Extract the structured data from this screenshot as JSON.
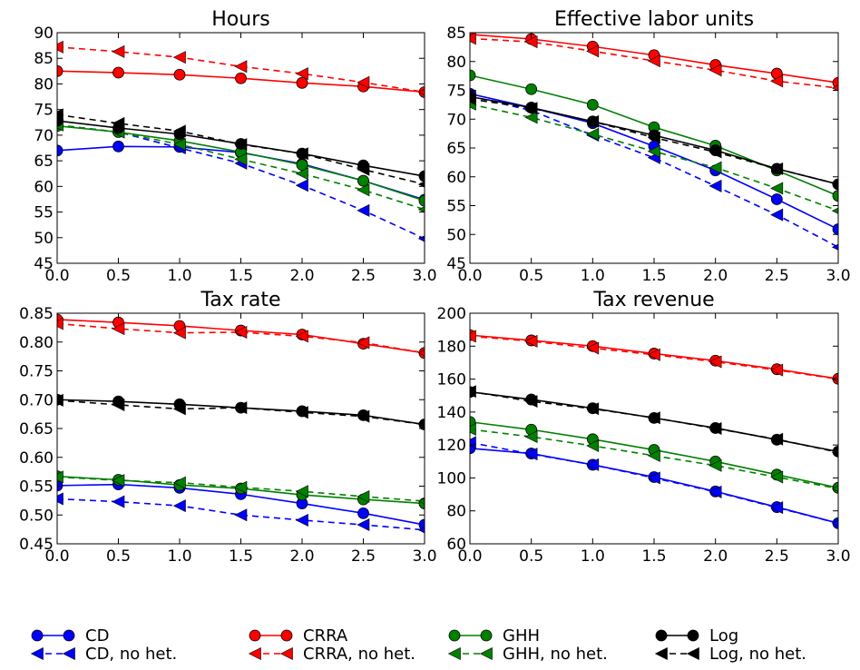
{
  "chart_data": [
    {
      "type": "line",
      "title": "Hours",
      "xlabel": "",
      "ylabel": "",
      "xlim": [
        0,
        3
      ],
      "ylim": [
        45,
        90
      ],
      "xticks": [
        "0.0",
        "0.5",
        "1.0",
        "1.5",
        "2.0",
        "2.5",
        "3.0"
      ],
      "yticks": [
        "45",
        "50",
        "55",
        "60",
        "65",
        "70",
        "75",
        "80",
        "85",
        "90"
      ],
      "grid": false,
      "x": [
        0,
        0.5,
        1,
        1.5,
        2,
        2.5,
        3
      ],
      "series": [
        {
          "name": "CD",
          "values": [
            67,
            67.8,
            67.7,
            66.6,
            64.4,
            61.1,
            57.4
          ]
        },
        {
          "name": "CD, no het.",
          "values": [
            72,
            70.6,
            67.5,
            64.5,
            60.2,
            55.3,
            49.8
          ]
        },
        {
          "name": "CRRA",
          "values": [
            82.5,
            82.2,
            81.8,
            81.1,
            80.2,
            79.5,
            78.4
          ]
        },
        {
          "name": "CRRA, no het.",
          "values": [
            87.2,
            86.3,
            85.2,
            83.4,
            82,
            80.3,
            78.4
          ]
        },
        {
          "name": "GHH",
          "values": [
            71.8,
            70.6,
            68.9,
            66.7,
            64.2,
            61.1,
            57.2
          ]
        },
        {
          "name": "GHH, no het.",
          "values": [
            72,
            70.6,
            68.2,
            65.3,
            62.5,
            59.3,
            55.5
          ]
        },
        {
          "name": "Log",
          "values": [
            72.8,
            71.4,
            70.2,
            68.3,
            66.4,
            64.1,
            62
          ]
        },
        {
          "name": "Log, no het.",
          "values": [
            74,
            72.3,
            70.8,
            68.2,
            66.4,
            63.3,
            60.4
          ]
        }
      ]
    },
    {
      "type": "line",
      "title": "Effective labor units",
      "xlabel": "",
      "ylabel": "",
      "xlim": [
        0,
        3
      ],
      "ylim": [
        45,
        85
      ],
      "xticks": [
        "0.0",
        "0.5",
        "1.0",
        "1.5",
        "2.0",
        "2.5",
        "3.0"
      ],
      "yticks": [
        "45",
        "50",
        "55",
        "60",
        "65",
        "70",
        "75",
        "80",
        "85"
      ],
      "grid": false,
      "x": [
        0,
        0.5,
        1,
        1.5,
        2,
        2.5,
        3
      ],
      "series": [
        {
          "name": "CD",
          "values": [
            74.4,
            72,
            69.3,
            65.3,
            61.1,
            56.1,
            50.9
          ]
        },
        {
          "name": "CD, no het.",
          "values": [
            74,
            71.5,
            67.2,
            63.3,
            58.4,
            53.4,
            47.8
          ]
        },
        {
          "name": "CRRA",
          "values": [
            84.7,
            83.9,
            82.6,
            81.1,
            79.4,
            77.9,
            76.3
          ]
        },
        {
          "name": "CRRA, no het.",
          "values": [
            84,
            83.4,
            81.8,
            80.1,
            78.5,
            76.6,
            75.4
          ]
        },
        {
          "name": "GHH",
          "values": [
            77.6,
            75.2,
            72.5,
            68.6,
            65.4,
            61.1,
            56.7
          ]
        },
        {
          "name": "GHH, no het.",
          "values": [
            72.6,
            70.3,
            67.4,
            64.4,
            61.6,
            58,
            54.1
          ]
        },
        {
          "name": "Log",
          "values": [
            73.9,
            72,
            69.6,
            67.2,
            64.6,
            61.4,
            58.7
          ]
        },
        {
          "name": "Log, no het.",
          "values": [
            73.5,
            71.9,
            69.6,
            66.8,
            64.3,
            61.4,
            58.7
          ]
        }
      ]
    },
    {
      "type": "line",
      "title": "Tax rate",
      "xlabel": "",
      "ylabel": "",
      "xlim": [
        0,
        3
      ],
      "ylim": [
        0.45,
        0.85
      ],
      "xticks": [
        "0.0",
        "0.5",
        "1.0",
        "1.5",
        "2.0",
        "2.5",
        "3.0"
      ],
      "yticks": [
        "0.45",
        "0.50",
        "0.55",
        "0.60",
        "0.65",
        "0.70",
        "0.75",
        "0.80",
        "0.85"
      ],
      "grid": false,
      "x": [
        0,
        0.5,
        1,
        1.5,
        2,
        2.5,
        3
      ],
      "series": [
        {
          "name": "CD",
          "values": [
            0.551,
            0.553,
            0.547,
            0.536,
            0.52,
            0.503,
            0.483
          ]
        },
        {
          "name": "CD, no het.",
          "values": [
            0.528,
            0.523,
            0.516,
            0.5,
            0.491,
            0.483,
            0.474
          ]
        },
        {
          "name": "CRRA",
          "values": [
            0.839,
            0.834,
            0.828,
            0.82,
            0.813,
            0.797,
            0.781
          ]
        },
        {
          "name": "CRRA, no het.",
          "values": [
            0.832,
            0.823,
            0.816,
            0.817,
            0.81,
            0.799,
            0.781
          ]
        },
        {
          "name": "GHH",
          "values": [
            0.567,
            0.561,
            0.552,
            0.546,
            0.535,
            0.527,
            0.52
          ]
        },
        {
          "name": "GHH, no het.",
          "values": [
            0.566,
            0.56,
            0.556,
            0.548,
            0.541,
            0.532,
            0.524
          ]
        },
        {
          "name": "Log",
          "values": [
            0.7,
            0.697,
            0.692,
            0.686,
            0.68,
            0.673,
            0.657
          ]
        },
        {
          "name": "Log, no het.",
          "values": [
            0.699,
            0.691,
            0.684,
            0.686,
            0.678,
            0.671,
            0.657
          ]
        }
      ]
    },
    {
      "type": "line",
      "title": "Tax revenue",
      "xlabel": "",
      "ylabel": "",
      "xlim": [
        0,
        3
      ],
      "ylim": [
        60,
        200
      ],
      "xticks": [
        "0.0",
        "0.5",
        "1.0",
        "1.5",
        "2.0",
        "2.5",
        "3.0"
      ],
      "yticks": [
        "60",
        "80",
        "100",
        "120",
        "140",
        "160",
        "180",
        "200"
      ],
      "grid": false,
      "x": [
        0,
        0.5,
        1,
        1.5,
        2,
        2.5,
        3
      ],
      "series": [
        {
          "name": "CD",
          "values": [
            118,
            114.8,
            108,
            100.5,
            91.8,
            82.3,
            72.5
          ]
        },
        {
          "name": "CD, no het.",
          "values": [
            121.5,
            114.5,
            108,
            100,
            91.5,
            82,
            72.5
          ]
        },
        {
          "name": "CRRA",
          "values": [
            186.7,
            183.5,
            180,
            175.5,
            171.2,
            166,
            160.2
          ]
        },
        {
          "name": "CRRA, no het.",
          "values": [
            186,
            183,
            178.8,
            174.8,
            170.5,
            165.5,
            160
          ]
        },
        {
          "name": "GHH",
          "values": [
            134,
            129.3,
            123.5,
            117,
            110,
            102,
            94
          ]
        },
        {
          "name": "GHH, no het.",
          "values": [
            129.5,
            125,
            119.5,
            113.5,
            107.5,
            100.5,
            93.5
          ]
        },
        {
          "name": "Log",
          "values": [
            152.2,
            147.6,
            142.3,
            136.4,
            130.3,
            123.2,
            116
          ]
        },
        {
          "name": "Log, no het.",
          "values": [
            152.5,
            146.5,
            142,
            136.5,
            130,
            123.5,
            115.5
          ]
        }
      ]
    }
  ],
  "legend": {
    "placement": "bottom",
    "entries": [
      {
        "label": "CD",
        "color": "#0000ff",
        "marker": "circle",
        "line": "solid"
      },
      {
        "label": "CD, no het.",
        "color": "#0000ff",
        "marker": "triangle-left",
        "line": "dashed"
      },
      {
        "label": "CRRA",
        "color": "#ff0000",
        "marker": "circle",
        "line": "solid"
      },
      {
        "label": "CRRA, no het.",
        "color": "#ff0000",
        "marker": "triangle-left",
        "line": "dashed"
      },
      {
        "label": "GHH",
        "color": "#008000",
        "marker": "circle",
        "line": "solid"
      },
      {
        "label": "GHH, no het.",
        "color": "#008000",
        "marker": "triangle-left",
        "line": "dashed"
      },
      {
        "label": "Log",
        "color": "#000000",
        "marker": "circle",
        "line": "solid"
      },
      {
        "label": "Log, no het.",
        "color": "#000000",
        "marker": "triangle-left",
        "line": "dashed"
      }
    ]
  },
  "series_styles": {
    "CD": {
      "color": "#0000ff",
      "marker": "circle",
      "line": "solid"
    },
    "CD, no het.": {
      "color": "#0000ff",
      "marker": "triangle-left",
      "line": "dashed"
    },
    "CRRA": {
      "color": "#ff0000",
      "marker": "circle",
      "line": "solid"
    },
    "CRRA, no het.": {
      "color": "#ff0000",
      "marker": "triangle-left",
      "line": "dashed"
    },
    "GHH": {
      "color": "#008000",
      "marker": "circle",
      "line": "solid"
    },
    "GHH, no het.": {
      "color": "#008000",
      "marker": "triangle-left",
      "line": "dashed"
    },
    "Log": {
      "color": "#000000",
      "marker": "circle",
      "line": "solid"
    },
    "Log, no het.": {
      "color": "#000000",
      "marker": "triangle-left",
      "line": "dashed"
    }
  }
}
